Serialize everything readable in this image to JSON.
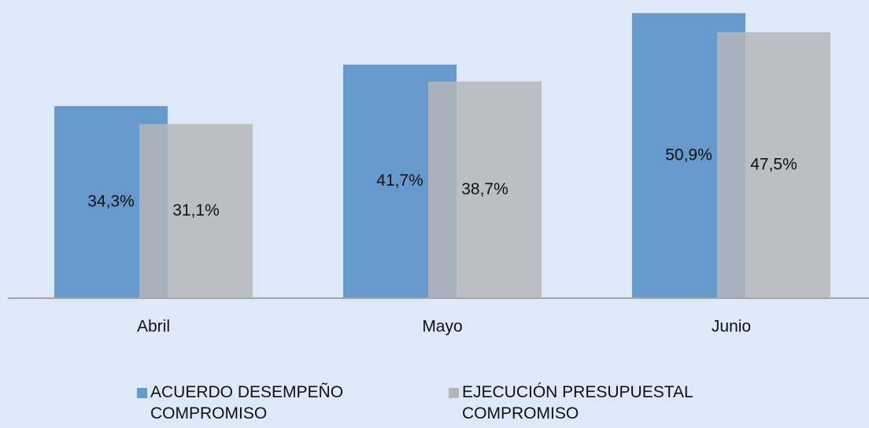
{
  "chart_data": {
    "type": "bar",
    "categories": [
      "Abril",
      "Mayo",
      "Junio"
    ],
    "series": [
      {
        "name": "ACUERDO DESEMPEÑO COMPROMISO",
        "color": "#6699cc",
        "values": [
          34.3,
          41.7,
          50.9
        ],
        "value_labels": [
          "34,3%",
          "41,7%",
          "50,9%"
        ]
      },
      {
        "name": "EJECUCIÓN PRESUPUESTAL COMPROMISO",
        "color": "#b5b6b9",
        "values": [
          31.1,
          38.7,
          47.5
        ],
        "value_labels": [
          "31,1%",
          "38,7%",
          "47,5%"
        ]
      }
    ],
    "ylim": [
      0,
      51
    ]
  }
}
